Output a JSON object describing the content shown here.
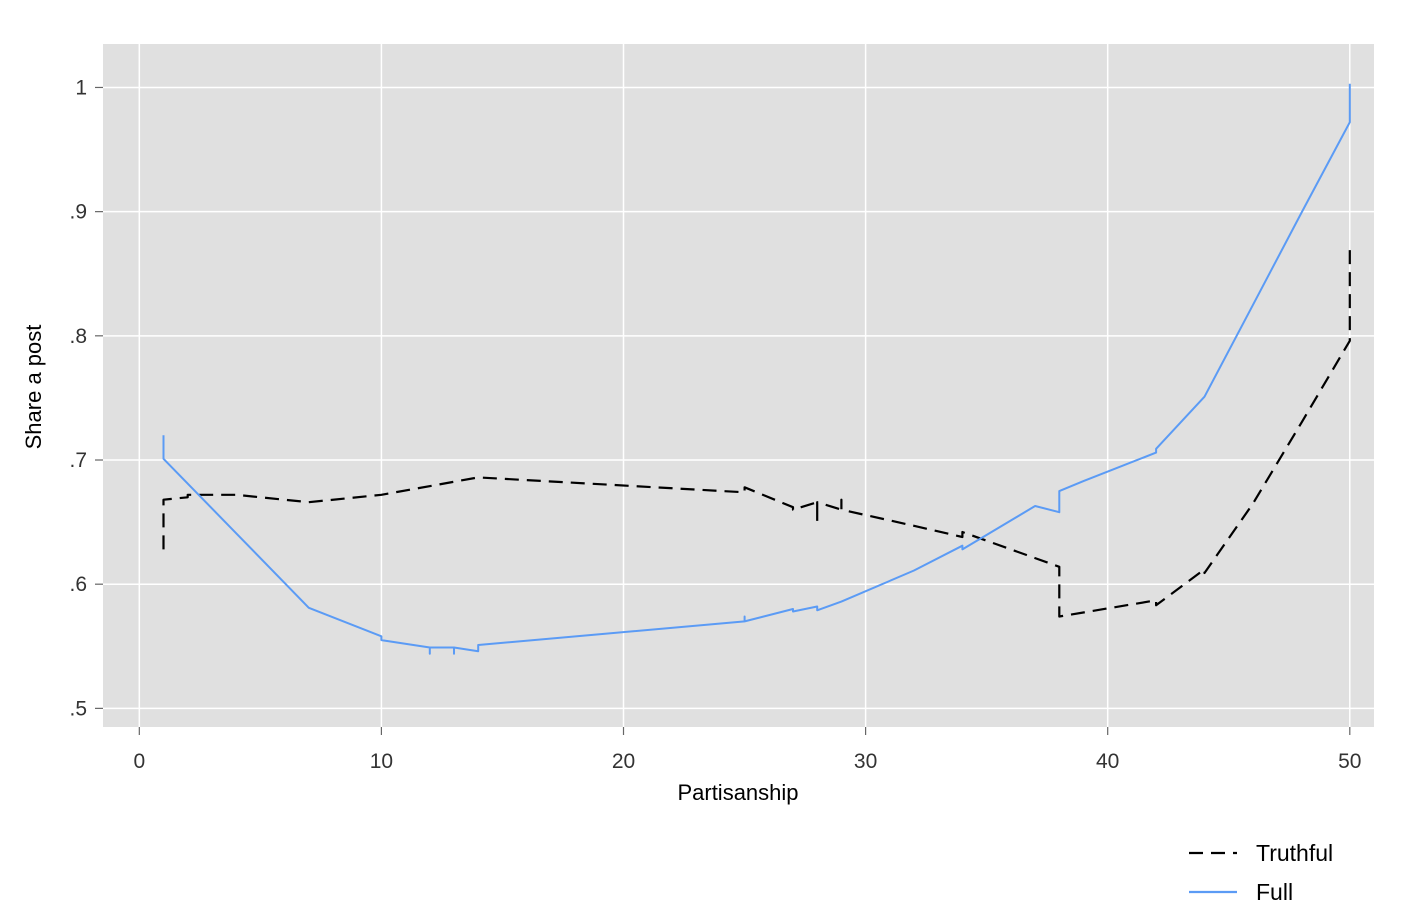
{
  "chart_data": {
    "type": "line",
    "title": "",
    "xlabel": "Partisanship",
    "ylabel": "Share a post",
    "xlim": [
      -1.5,
      51
    ],
    "ylim": [
      0.485,
      1.035
    ],
    "x_ticks": [
      0,
      10,
      20,
      30,
      40,
      50
    ],
    "x_tick_labels": [
      "0",
      "10",
      "20",
      "30",
      "40",
      "50"
    ],
    "y_ticks": [
      0.5,
      0.6,
      0.7,
      0.8,
      0.9,
      1.0
    ],
    "y_tick_labels": [
      ".5",
      ".6",
      ".7",
      ".8",
      ".9",
      "1"
    ],
    "grid": true,
    "legend_position": "bottom-right",
    "colors": {
      "panel": "#e0e0e0",
      "grid": "#ffffff",
      "truthful": "#000000",
      "full": "#5b9bf5"
    },
    "series": [
      {
        "name": "Truthful",
        "style": "dashed",
        "color": "#000000",
        "x": [
          1,
          1,
          2,
          2,
          4,
          7,
          10,
          14,
          25,
          25,
          27,
          27,
          28,
          28,
          28,
          29,
          29,
          29,
          32,
          34,
          34,
          37,
          38,
          38,
          38,
          42,
          42,
          44,
          44,
          46,
          48,
          50,
          50
        ],
        "y": [
          0.628,
          0.668,
          0.67,
          0.672,
          0.672,
          0.666,
          0.672,
          0.686,
          0.674,
          0.678,
          0.662,
          0.66,
          0.666,
          0.65,
          0.666,
          0.66,
          0.668,
          0.66,
          0.647,
          0.638,
          0.642,
          0.621,
          0.614,
          0.574,
          0.574,
          0.587,
          0.583,
          0.612,
          0.609,
          0.665,
          0.73,
          0.796,
          0.87
        ]
      },
      {
        "name": "Full",
        "style": "solid",
        "color": "#5b9bf5",
        "x": [
          1,
          1,
          4,
          7,
          10,
          10,
          12,
          12,
          12,
          13,
          13,
          13,
          14,
          14,
          14,
          25,
          25,
          25,
          27,
          27,
          28,
          28,
          29,
          32,
          34,
          34,
          37,
          38,
          38,
          39,
          42,
          42,
          44,
          46,
          48,
          50,
          50
        ],
        "y": [
          0.72,
          0.701,
          0.641,
          0.581,
          0.558,
          0.555,
          0.549,
          0.544,
          0.549,
          0.549,
          0.544,
          0.549,
          0.546,
          0.551,
          0.551,
          0.57,
          0.574,
          0.57,
          0.58,
          0.578,
          0.582,
          0.579,
          0.586,
          0.611,
          0.631,
          0.628,
          0.663,
          0.658,
          0.675,
          0.683,
          0.706,
          0.709,
          0.751,
          0.825,
          0.899,
          0.972,
          1.003
        ]
      }
    ]
  }
}
